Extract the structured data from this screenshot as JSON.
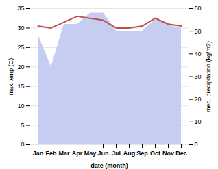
{
  "chart_data": {
    "type": "line",
    "categories": [
      "Jan",
      "Feb",
      "Mar",
      "Apr",
      "May",
      "Jun",
      "Jul",
      "Aug",
      "Sep",
      "Oct",
      "Nov",
      "Dec"
    ],
    "xlabel": "date (month)",
    "ylabel": "max temp (C)",
    "y2label": "med. precipitation (kg/m2)",
    "series": [
      {
        "type": "line",
        "color": "#c0504d",
        "values": [
          30.5,
          30.0,
          31.5,
          33.0,
          32.5,
          32.0,
          30.0,
          30.0,
          30.5,
          32.5,
          31.0,
          30.5
        ]
      },
      {
        "type": "area",
        "axis": "y2",
        "color": "#c5cdf0",
        "values": [
          48,
          34,
          53,
          53,
          58,
          58,
          50,
          50,
          50,
          55,
          53,
          51
        ]
      }
    ],
    "ylim": [
      0,
      35
    ],
    "yticks": [
      0,
      5,
      10,
      15,
      20,
      25,
      30,
      35
    ],
    "y2lim": [
      0,
      60
    ],
    "y2ticks": [
      0,
      10,
      20,
      30,
      40,
      50,
      60
    ],
    "grid": true
  }
}
